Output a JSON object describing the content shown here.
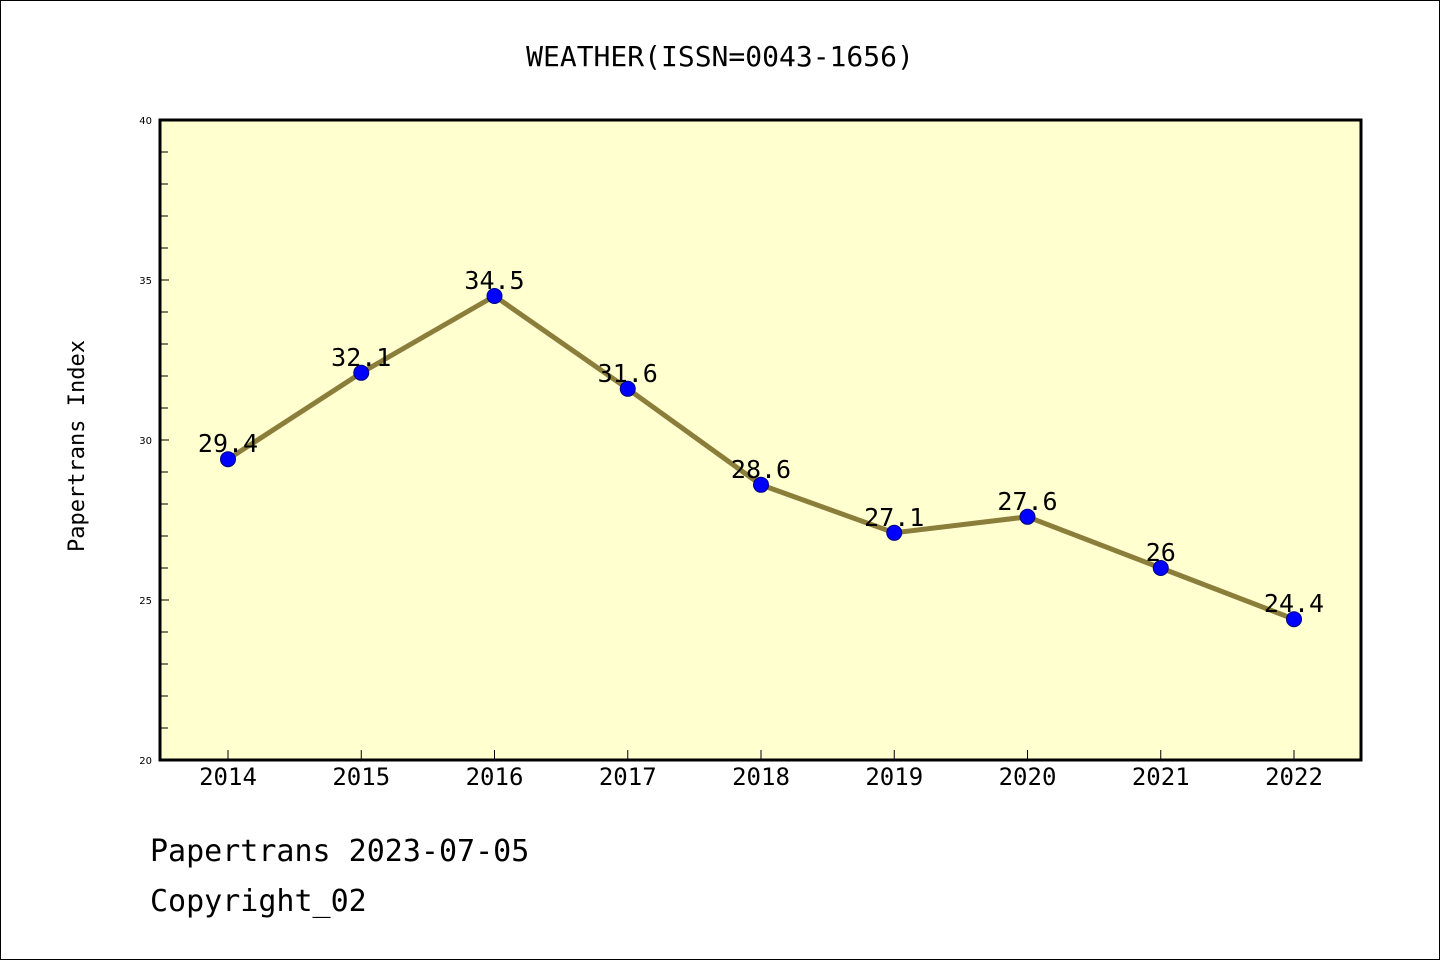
{
  "chart_data": {
    "type": "line",
    "title": "WEATHER(ISSN=0043-1656)",
    "ylabel": "Papertrans Index",
    "xlabel": "",
    "categories": [
      "2014",
      "2015",
      "2016",
      "2017",
      "2018",
      "2019",
      "2020",
      "2021",
      "2022"
    ],
    "values": [
      29.4,
      32.1,
      34.5,
      31.6,
      28.6,
      27.1,
      27.6,
      26,
      24.4
    ],
    "data_labels": [
      "29.4",
      "32.1",
      "34.5",
      "31.6",
      "28.6",
      "27.1",
      "27.6",
      "26",
      "24.4"
    ],
    "ylim": [
      20,
      40
    ],
    "yticks": [
      20,
      25,
      30,
      35,
      40
    ],
    "grid": false,
    "legend": "none",
    "colors": {
      "plot_background": "#ffffd0",
      "line": "#8b7d3a",
      "marker_fill": "#0000ff",
      "marker_edge": "#000080"
    }
  },
  "footer": {
    "line1": "Papertrans 2023-07-05",
    "line2": "Copyright_02"
  }
}
